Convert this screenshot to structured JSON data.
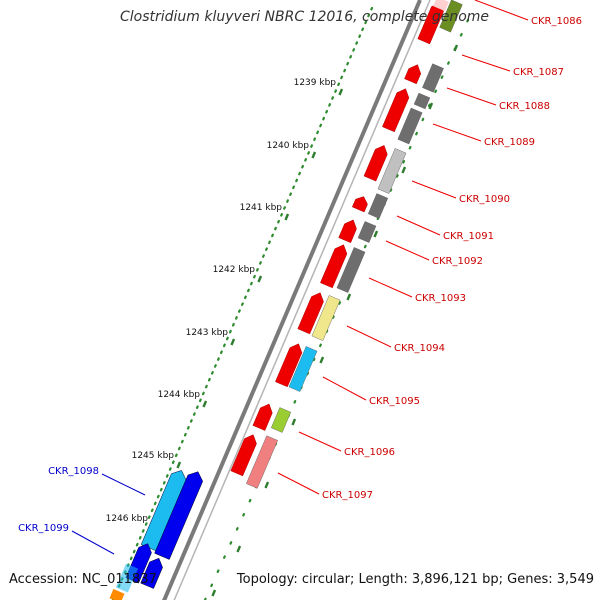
{
  "title": "Clostridium kluyveri NBRC 12016, complete genome",
  "footer": {
    "accession": "Accession: NC_011837",
    "summary": "Topology: circular; Length: 3,896,121 bp; Genes: 3,549"
  },
  "colors": {
    "backbone": "#7a7a7a",
    "ruler_dots": "#2e8b2e",
    "ruler_ticks": "#2e7d2e",
    "label_forward": "#0000cc",
    "label_reverse": "#cc0000",
    "red": "#ee0000",
    "dark_gray": "#6e6e6e",
    "light_gray": "#c0c0c0",
    "khaki": "#f0e68c",
    "cyan": "#1cbcf0",
    "yellow_green": "#9acd32",
    "salmon": "#f08080",
    "blue": "#0000ee",
    "olive": "#6b8e23",
    "orange": "#ff8c00"
  },
  "ruler": {
    "ticks": [
      {
        "label": "1239 kbp"
      },
      {
        "label": "1240 kbp"
      },
      {
        "label": "1241 kbp"
      },
      {
        "label": "1242 kbp"
      },
      {
        "label": "1243 kbp"
      },
      {
        "label": "1244 kbp"
      },
      {
        "label": "1245 kbp"
      },
      {
        "label": "1246 kbp"
      }
    ]
  },
  "genes": {
    "reverse_labelled": [
      {
        "label": "CKR_1086",
        "color": "olive"
      },
      {
        "label": "CKR_1087",
        "color": "dark_gray"
      },
      {
        "label": "CKR_1088",
        "color": "dark_gray"
      },
      {
        "label": "CKR_1089",
        "color": "dark_gray"
      },
      {
        "label": "CKR_1090",
        "color": "light_gray"
      },
      {
        "label": "CKR_1091",
        "color": "dark_gray"
      },
      {
        "label": "CKR_1092",
        "color": "dark_gray"
      },
      {
        "label": "CKR_1093",
        "color": "dark_gray"
      },
      {
        "label": "CKR_1094",
        "color": "khaki"
      },
      {
        "label": "CKR_1095",
        "color": "cyan"
      },
      {
        "label": "CKR_1096",
        "color": "yellow_green"
      },
      {
        "label": "CKR_1097",
        "color": "salmon"
      }
    ],
    "forward_labelled": [
      {
        "label": "CKR_1098",
        "color": "cyan"
      },
      {
        "label": "CKR_1099",
        "color": "blue"
      }
    ]
  }
}
